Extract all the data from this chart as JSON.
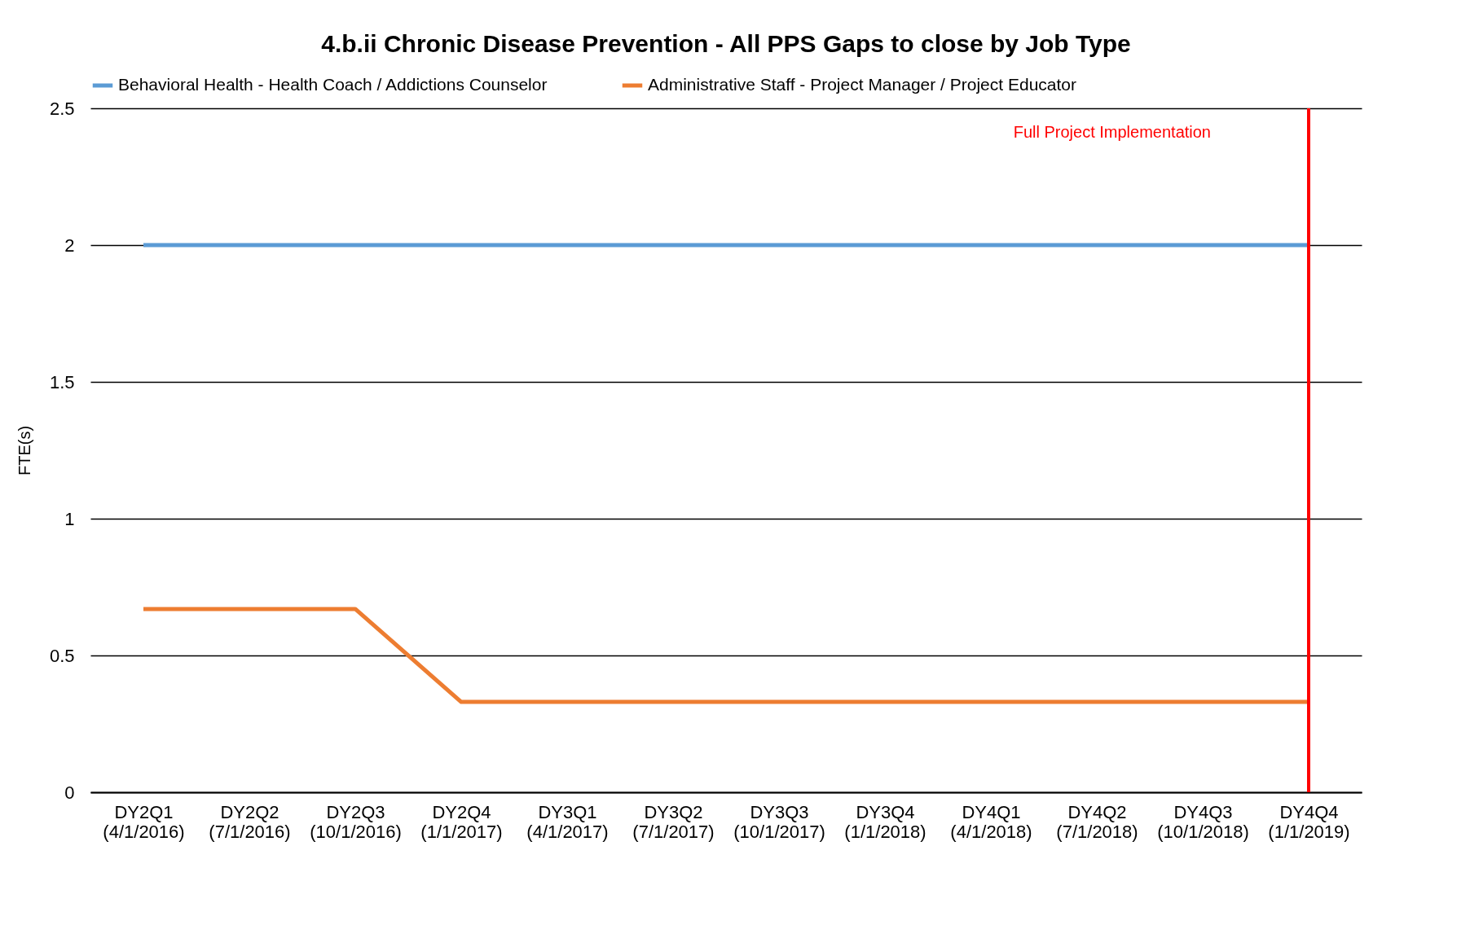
{
  "chart_data": {
    "type": "line",
    "title": "4.b.ii Chronic Disease Prevention - All PPS Gaps to close by Job Type",
    "ylabel": "FTE(s)",
    "categories": [
      "DY2Q1 (4/1/2016)",
      "DY2Q2 (7/1/2016)",
      "DY2Q3 (10/1/2016)",
      "DY2Q4 (1/1/2017)",
      "DY3Q1 (4/1/2017)",
      "DY3Q2 (7/1/2017)",
      "DY3Q3 (10/1/2017)",
      "DY3Q4 (1/1/2018)",
      "DY4Q1 (4/1/2018)",
      "DY4Q2 (7/1/2018)",
      "DY4Q3 (10/1/2018)",
      "DY4Q4 (1/1/2019)"
    ],
    "series": [
      {
        "name": "Behavioral Health - Health Coach / Addictions Counselor",
        "color": "#5b9bd5",
        "values": [
          2,
          2,
          2,
          2,
          2,
          2,
          2,
          2,
          2,
          2,
          2,
          2
        ]
      },
      {
        "name": "Administrative Staff - Project Manager / Project Educator",
        "color": "#ed7d31",
        "values": [
          0.67,
          0.67,
          0.67,
          0.33,
          0.33,
          0.33,
          0.33,
          0.33,
          0.33,
          0.33,
          0.33,
          0.33
        ]
      }
    ],
    "ylim": [
      0,
      2.5
    ],
    "yticks": [
      0,
      0.5,
      1,
      1.5,
      2,
      2.5
    ],
    "grid": "y",
    "legend": "top",
    "ref_lines": [
      {
        "axis": "x",
        "value": "DY4Q4 (1/1/2019)",
        "label": "Full Project Implementation",
        "color": "#ff0000"
      }
    ]
  }
}
